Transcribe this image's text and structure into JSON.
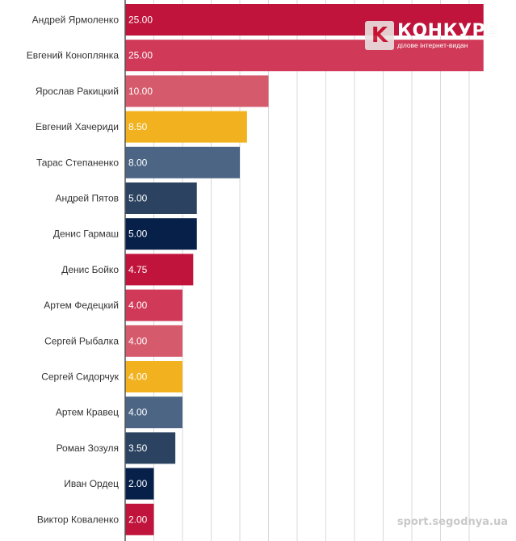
{
  "logo": {
    "icon_letter": "K",
    "name": "КОНКУРЕ",
    "tagline": "ділове інтернет-видан"
  },
  "watermark": "sport.segodnya.ua",
  "colors": {
    "crimson": "#c0143c",
    "red": "#d03a58",
    "pink": "#d55a6c",
    "amber": "#f2b21f",
    "slate": "#4c6585",
    "navy": "#2b4260",
    "darknavy": "#06204a",
    "grid": "#dadada",
    "axis": "#555555"
  },
  "chart_data": {
    "type": "bar",
    "orientation": "horizontal",
    "categories": [
      "Андрей Ярмоленко",
      "Евгений Коноплянка",
      "Ярослав Ракицкий",
      "Евгений Хачериди",
      "Тарас Степаненко",
      "Андрей Пятов",
      "Денис Гармаш",
      "Денис Бойко",
      "Артем Федецкий",
      "Сергей Рыбалка",
      "Сергей Сидорчук",
      "Артем Кравец",
      "Роман Зозуля",
      "Иван Ордец",
      "Виктор Коваленко"
    ],
    "values": [
      25,
      25,
      10,
      8.5,
      8,
      5,
      5,
      4.75,
      4,
      4,
      4,
      4,
      3.5,
      2,
      2
    ],
    "value_labels": [
      "25.00",
      "25.00",
      "10.00",
      "8.50",
      "8.00",
      "5.00",
      "5.00",
      "4.75",
      "4.00",
      "4.00",
      "4.00",
      "4.00",
      "3.50",
      "2.00",
      "2.00"
    ],
    "bar_colors": [
      "#c0143c",
      "#d03a58",
      "#d55a6c",
      "#f2b21f",
      "#4c6585",
      "#2b4260",
      "#06204a",
      "#c0143c",
      "#d03a58",
      "#d55a6c",
      "#f2b21f",
      "#4c6585",
      "#2b4260",
      "#06204a",
      "#c0143c"
    ],
    "xlim": [
      0,
      25
    ],
    "grid": true,
    "gridline_step": 2,
    "title": "",
    "xlabel": "",
    "ylabel": ""
  }
}
